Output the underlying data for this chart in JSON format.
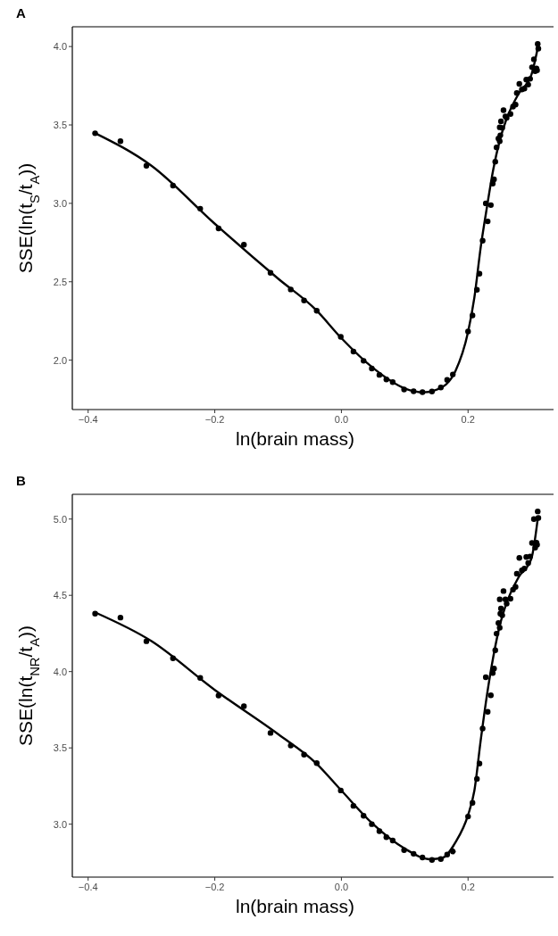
{
  "chart_data": [
    {
      "type": "scatter",
      "title": "A",
      "xlabel": "ln(brain mass)",
      "ylabel": "SSE(ln(t$_{S}$/t$_{A}$))",
      "xlim": [
        -0.425,
        0.335
      ],
      "ylim": [
        1.685,
        4.126
      ],
      "xticks": [
        {
          "value": -0.4,
          "label": "−0.4"
        },
        {
          "value": -0.2,
          "label": "−0.2"
        },
        {
          "value": 0,
          "label": "0.0"
        },
        {
          "value": 0.2,
          "label": "0.2"
        }
      ],
      "yticks": [
        {
          "value": 2,
          "label": "2.0"
        },
        {
          "value": 2.5,
          "label": "2.5"
        },
        {
          "value": 3,
          "label": "3.0"
        },
        {
          "value": 3.5,
          "label": "3.5"
        },
        {
          "value": 4,
          "label": "4.0"
        }
      ],
      "grid": false,
      "marker": "circle",
      "series": [
        {
          "color": "#000000",
          "x": [
            -0.389,
            -0.349,
            -0.308,
            -0.266,
            -0.223,
            -0.194,
            -0.154,
            -0.112,
            -0.08,
            -0.059,
            -0.039,
            -0.001,
            0.019,
            0.035,
            0.048,
            0.06,
            0.071,
            0.081,
            0.099,
            0.114,
            0.128,
            0.143,
            0.157,
            0.167,
            0.176,
            0.2,
            0.207,
            0.214,
            0.218,
            0.223,
            0.231,
            0.228,
            0.236,
            0.239,
            0.241,
            0.243,
            0.245,
            0.248,
            0.25,
            0.251,
            0.25,
            0.252,
            0.254,
            0.256,
            0.259,
            0.261,
            0.267,
            0.271,
            0.275,
            0.277,
            0.281,
            0.285,
            0.289,
            0.292,
            0.295,
            0.298,
            0.301,
            0.304,
            0.306,
            0.308,
            0.309,
            0.31,
            0.311
          ],
          "values": [
            3.447,
            3.396,
            3.24,
            3.113,
            2.966,
            2.84,
            2.736,
            2.557,
            2.451,
            2.381,
            2.315,
            2.149,
            2.055,
            1.996,
            1.947,
            1.906,
            1.877,
            1.86,
            1.813,
            1.802,
            1.796,
            1.8,
            1.826,
            1.874,
            1.909,
            2.183,
            2.285,
            2.449,
            2.551,
            2.762,
            2.885,
            3.0,
            2.989,
            3.126,
            3.153,
            3.266,
            3.357,
            3.413,
            3.396,
            3.434,
            3.485,
            3.523,
            3.481,
            3.594,
            3.555,
            3.545,
            3.57,
            3.617,
            3.63,
            3.704,
            3.762,
            3.726,
            3.732,
            3.789,
            3.757,
            3.794,
            3.868,
            3.919,
            3.843,
            3.86,
            3.849,
            4.017,
            3.987
          ]
        },
        {
          "type": "line",
          "color": "#000000",
          "marker": "none",
          "x": [
            -0.39,
            -0.3,
            -0.2,
            -0.1,
            -0.04,
            0.0,
            0.05,
            0.1,
            0.13,
            0.16,
            0.18,
            0.2,
            0.21,
            0.22,
            0.23,
            0.24,
            0.25,
            0.26,
            0.28,
            0.3,
            0.31
          ],
          "values": [
            3.45,
            3.24,
            2.87,
            2.52,
            2.32,
            2.14,
            1.95,
            1.82,
            1.795,
            1.83,
            1.93,
            2.18,
            2.4,
            2.72,
            2.98,
            3.22,
            3.4,
            3.53,
            3.7,
            3.82,
            3.99
          ]
        }
      ]
    },
    {
      "type": "scatter",
      "title": "B",
      "xlabel": "ln(brain mass)",
      "ylabel": "SSE(ln(t$_{NR}$/t$_{A}$))",
      "xlim": [
        -0.425,
        0.335
      ],
      "ylim": [
        2.653,
        5.162
      ],
      "xticks": [
        {
          "value": -0.4,
          "label": "−0.4"
        },
        {
          "value": -0.2,
          "label": "−0.2"
        },
        {
          "value": 0,
          "label": "0.0"
        },
        {
          "value": 0.2,
          "label": "0.2"
        }
      ],
      "yticks": [
        {
          "value": 3,
          "label": "3.0"
        },
        {
          "value": 3.5,
          "label": "3.5"
        },
        {
          "value": 4,
          "label": "4.0"
        },
        {
          "value": 4.5,
          "label": "4.5"
        },
        {
          "value": 5,
          "label": "5.0"
        }
      ],
      "grid": false,
      "marker": "circle",
      "series": [
        {
          "color": "#000000",
          "x": [
            -0.389,
            -0.349,
            -0.308,
            -0.266,
            -0.223,
            -0.194,
            -0.154,
            -0.112,
            -0.08,
            -0.059,
            -0.039,
            -0.001,
            0.019,
            0.035,
            0.048,
            0.06,
            0.071,
            0.081,
            0.099,
            0.114,
            0.128,
            0.143,
            0.157,
            0.167,
            0.176,
            0.2,
            0.207,
            0.214,
            0.218,
            0.223,
            0.231,
            0.228,
            0.236,
            0.239,
            0.241,
            0.243,
            0.245,
            0.248,
            0.25,
            0.251,
            0.25,
            0.252,
            0.254,
            0.256,
            0.259,
            0.261,
            0.267,
            0.271,
            0.275,
            0.277,
            0.281,
            0.285,
            0.289,
            0.292,
            0.295,
            0.298,
            0.301,
            0.304,
            0.306,
            0.308,
            0.309,
            0.31,
            0.311
          ],
          "values": [
            4.38,
            4.354,
            4.199,
            4.087,
            3.959,
            3.843,
            3.773,
            3.598,
            3.515,
            3.456,
            3.4,
            3.221,
            3.12,
            3.055,
            3.0,
            2.954,
            2.915,
            2.893,
            2.83,
            2.806,
            2.782,
            2.766,
            2.771,
            2.801,
            2.821,
            3.05,
            3.14,
            3.297,
            3.397,
            3.627,
            3.736,
            3.963,
            3.845,
            3.991,
            4.02,
            4.14,
            4.249,
            4.319,
            4.288,
            4.38,
            4.474,
            4.413,
            4.369,
            4.528,
            4.474,
            4.445,
            4.478,
            4.537,
            4.555,
            4.642,
            4.745,
            4.664,
            4.675,
            4.751,
            4.712,
            4.755,
            4.843,
            5.0,
            4.812,
            4.845,
            4.832,
            5.05,
            5.007
          ]
        },
        {
          "type": "line",
          "color": "#000000",
          "marker": "none",
          "x": [
            -0.39,
            -0.3,
            -0.2,
            -0.1,
            -0.04,
            0.0,
            0.05,
            0.1,
            0.14,
            0.16,
            0.18,
            0.2,
            0.21,
            0.22,
            0.23,
            0.24,
            0.25,
            0.26,
            0.28,
            0.3,
            0.31
          ],
          "values": [
            4.39,
            4.2,
            3.88,
            3.59,
            3.4,
            3.22,
            3.0,
            2.84,
            2.77,
            2.78,
            2.88,
            3.06,
            3.22,
            3.55,
            3.85,
            4.1,
            4.3,
            4.44,
            4.62,
            4.74,
            5.0
          ]
        }
      ]
    }
  ]
}
